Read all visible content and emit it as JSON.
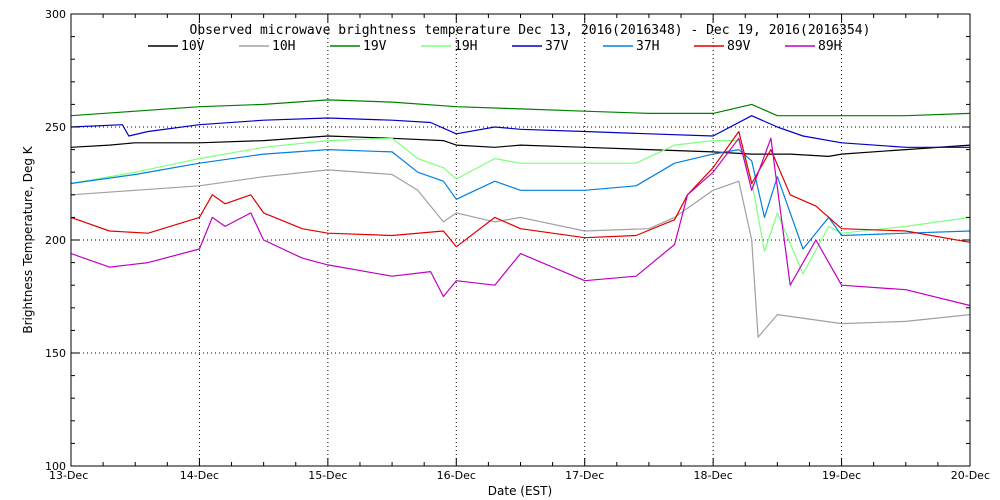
{
  "chart_data": {
    "type": "line",
    "title": "Observed microwave brightness temperature Dec 13, 2016(2016348) - Dec 19, 2016(2016354)",
    "xlabel": "Date (EST)",
    "ylabel": "Brightness Temperature, Deg K",
    "xlim": [
      "13-Dec",
      "20-Dec"
    ],
    "ylim": [
      100,
      300
    ],
    "x_ticks": [
      "13-Dec",
      "14-Dec",
      "15-Dec",
      "16-Dec",
      "17-Dec",
      "18-Dec",
      "19-Dec",
      "20-Dec"
    ],
    "y_ticks": [
      "100",
      "150",
      "200",
      "250",
      "300"
    ],
    "grid": "dotted",
    "legend": "top",
    "series": [
      {
        "name": "10V",
        "color": "#000000",
        "x": [
          0,
          0.3,
          0.5,
          1.0,
          1.5,
          2.0,
          2.5,
          2.9,
          3.0,
          3.3,
          3.5,
          4.0,
          4.5,
          5.0,
          5.3,
          5.6,
          5.9,
          6.0,
          6.5,
          7.0
        ],
        "y": [
          241,
          242,
          243,
          243,
          244,
          246,
          245,
          244,
          242,
          241,
          242,
          241,
          240,
          239,
          238,
          238,
          237,
          238,
          240,
          242
        ]
      },
      {
        "name": "10H",
        "color": "#a0a0a0",
        "x": [
          0,
          0.5,
          1.0,
          1.5,
          2.0,
          2.5,
          2.7,
          2.9,
          3.0,
          3.3,
          3.5,
          4.0,
          4.5,
          4.7,
          5.0,
          5.2,
          5.3,
          5.35,
          5.5,
          6.0,
          6.5,
          7.0
        ],
        "y": [
          220,
          222,
          224,
          228,
          231,
          229,
          222,
          208,
          212,
          208,
          210,
          204,
          205,
          210,
          222,
          226,
          200,
          157,
          167,
          163,
          164,
          167
        ]
      },
      {
        "name": "19V",
        "color": "#008000",
        "x": [
          0,
          0.5,
          1.0,
          1.5,
          2.0,
          2.5,
          3.0,
          3.5,
          4.0,
          4.5,
          5.0,
          5.3,
          5.5,
          6.0,
          6.5,
          7.0
        ],
        "y": [
          255,
          257,
          259,
          260,
          262,
          261,
          259,
          258,
          257,
          256,
          256,
          260,
          255,
          255,
          255,
          256
        ]
      },
      {
        "name": "19H",
        "color": "#7fff7f",
        "x": [
          0,
          0.5,
          1.0,
          1.5,
          2.0,
          2.5,
          2.7,
          2.9,
          3.0,
          3.3,
          3.5,
          4.0,
          4.4,
          4.7,
          5.0,
          5.2,
          5.3,
          5.4,
          5.5,
          5.7,
          5.9,
          6.0,
          6.5,
          7.0
        ],
        "y": [
          225,
          230,
          236,
          241,
          244,
          245,
          236,
          232,
          227,
          236,
          234,
          234,
          234,
          242,
          244,
          244,
          226,
          195,
          212,
          185,
          206,
          203,
          206,
          210
        ]
      },
      {
        "name": "37V",
        "color": "#0000c8",
        "x": [
          0,
          0.4,
          0.45,
          0.6,
          1.0,
          1.5,
          2.0,
          2.5,
          2.8,
          3.0,
          3.3,
          3.5,
          4.0,
          4.5,
          5.0,
          5.3,
          5.5,
          5.7,
          6.0,
          6.5,
          7.0
        ],
        "y": [
          250,
          251,
          246,
          248,
          251,
          253,
          254,
          253,
          252,
          247,
          250,
          249,
          248,
          247,
          246,
          255,
          250,
          246,
          243,
          241,
          241
        ]
      },
      {
        "name": "37H",
        "color": "#0080e0",
        "x": [
          0,
          0.5,
          1.0,
          1.5,
          2.0,
          2.5,
          2.7,
          2.9,
          3.0,
          3.3,
          3.5,
          4.0,
          4.4,
          4.7,
          5.0,
          5.2,
          5.3,
          5.4,
          5.5,
          5.7,
          5.9,
          6.0,
          6.5,
          7.0
        ],
        "y": [
          225,
          229,
          234,
          238,
          240,
          239,
          230,
          226,
          218,
          226,
          222,
          222,
          224,
          234,
          238,
          240,
          235,
          210,
          228,
          196,
          210,
          202,
          203,
          204
        ]
      },
      {
        "name": "89V",
        "color": "#e00000",
        "x": [
          0,
          0.3,
          0.6,
          1.0,
          1.1,
          1.2,
          1.4,
          1.5,
          1.8,
          2.0,
          2.5,
          2.9,
          3.0,
          3.3,
          3.5,
          4.0,
          4.4,
          4.7,
          4.8,
          5.0,
          5.2,
          5.3,
          5.45,
          5.6,
          5.8,
          6.0,
          6.5,
          7.0
        ],
        "y": [
          210,
          204,
          203,
          210,
          220,
          216,
          220,
          212,
          205,
          203,
          202,
          204,
          197,
          210,
          205,
          201,
          202,
          209,
          220,
          232,
          248,
          225,
          240,
          220,
          215,
          205,
          204,
          199
        ]
      },
      {
        "name": "89H",
        "color": "#c000c0",
        "x": [
          0,
          0.3,
          0.6,
          1.0,
          1.1,
          1.2,
          1.4,
          1.5,
          1.8,
          2.0,
          2.5,
          2.8,
          2.9,
          3.0,
          3.3,
          3.5,
          4.0,
          4.4,
          4.7,
          4.8,
          5.0,
          5.2,
          5.3,
          5.45,
          5.6,
          5.8,
          6.0,
          6.5,
          7.0
        ],
        "y": [
          194,
          188,
          190,
          196,
          210,
          206,
          212,
          200,
          192,
          189,
          184,
          186,
          175,
          182,
          180,
          194,
          182,
          184,
          198,
          220,
          230,
          245,
          222,
          245,
          180,
          200,
          180,
          178,
          171
        ]
      }
    ]
  }
}
